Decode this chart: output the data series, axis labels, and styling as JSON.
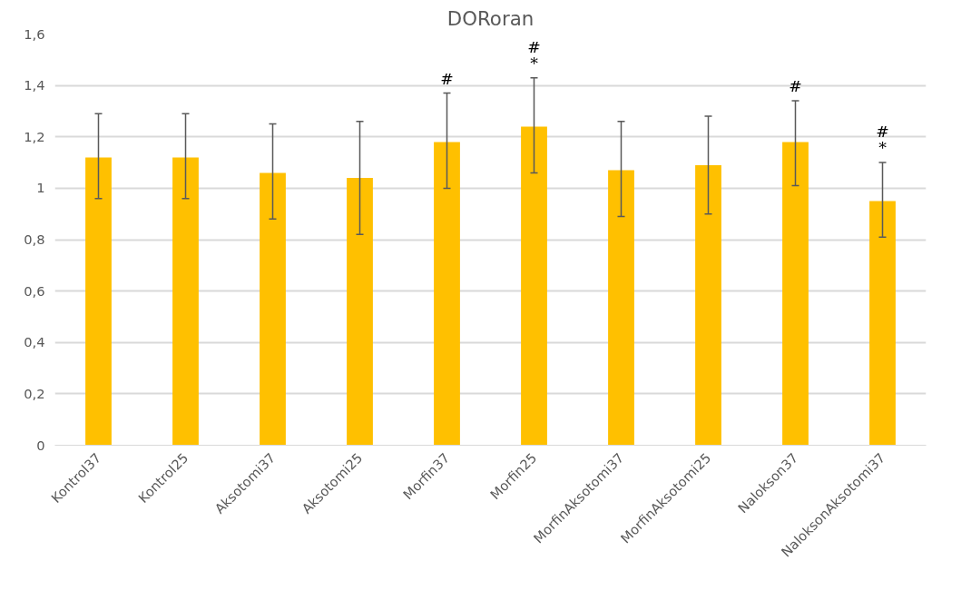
{
  "chart_data": {
    "type": "bar",
    "title": "DORoran",
    "categories": [
      "Kontrol37",
      "Kontrol25",
      "Aksotomi37",
      "Aksotomi25",
      "Morfin37",
      "Morfin25",
      "MorfinAksotomi37",
      "MorfinAksotomi25",
      "Nalokson37",
      "NaloksonAksotomi37"
    ],
    "values": [
      1.12,
      1.12,
      1.06,
      1.04,
      1.18,
      1.24,
      1.07,
      1.09,
      1.18,
      0.95
    ],
    "errors": [
      [
        0.96,
        1.29
      ],
      [
        0.96,
        1.29
      ],
      [
        0.88,
        1.25
      ],
      [
        0.82,
        1.26
      ],
      [
        1.0,
        1.37
      ],
      [
        1.06,
        1.43
      ],
      [
        0.89,
        1.26
      ],
      [
        0.9,
        1.28
      ],
      [
        1.01,
        1.34
      ],
      [
        0.81,
        1.1
      ]
    ],
    "color": "#ffc000",
    "ylim": [
      0,
      1.6
    ],
    "yticks": [
      0,
      {
        "value": 0.2,
        "label": "0,2"
      },
      {
        "value": 0.4,
        "label": "0,4"
      },
      {
        "value": 0.6,
        "label": "0,6"
      },
      {
        "value": 0.8,
        "label": "0,8"
      },
      1,
      {
        "value": 1.2,
        "label": "1,2"
      },
      {
        "value": 1.4,
        "label": "1,4"
      },
      {
        "value": 1.6,
        "label": "1,6"
      }
    ],
    "grid": "y",
    "annotations": [
      {
        "text": "#",
        "x": "Morfin37",
        "y": 1.37
      },
      {
        "text": "*",
        "x": "Morfin25",
        "y": 1.43
      },
      {
        "text": "#",
        "x": "Morfin25",
        "y": 1.43
      },
      {
        "text": "#",
        "x": "Nalokson37",
        "y": 1.34
      },
      {
        "text": "*",
        "x": "NaloksonAksotomi37",
        "y": 1.1
      },
      {
        "text": "#",
        "x": "NaloksonAksotomi37",
        "y": 1.1
      }
    ]
  }
}
